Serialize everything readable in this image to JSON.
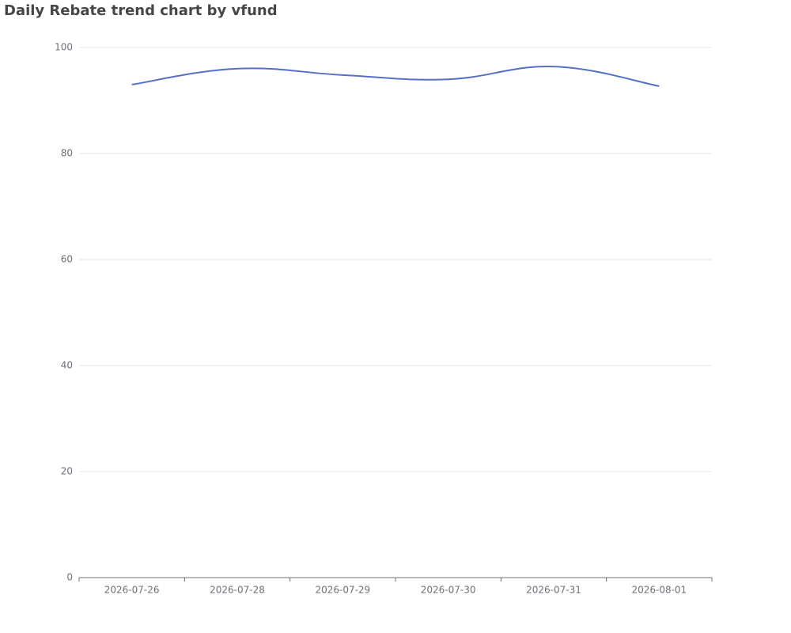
{
  "chart_data": {
    "type": "line",
    "title": "Daily Rebate trend chart by vfund",
    "categories": [
      "2026-07-26",
      "2026-07-28",
      "2026-07-29",
      "2026-07-30",
      "2026-07-31",
      "2026-08-01"
    ],
    "values": [
      93.0,
      96.0,
      94.8,
      94.0,
      96.4,
      92.7
    ],
    "color": "#5470c6",
    "smooth": true,
    "ylim": [
      0,
      100
    ],
    "yticks": [
      0,
      20,
      40,
      60,
      80,
      100
    ],
    "grid": true
  }
}
